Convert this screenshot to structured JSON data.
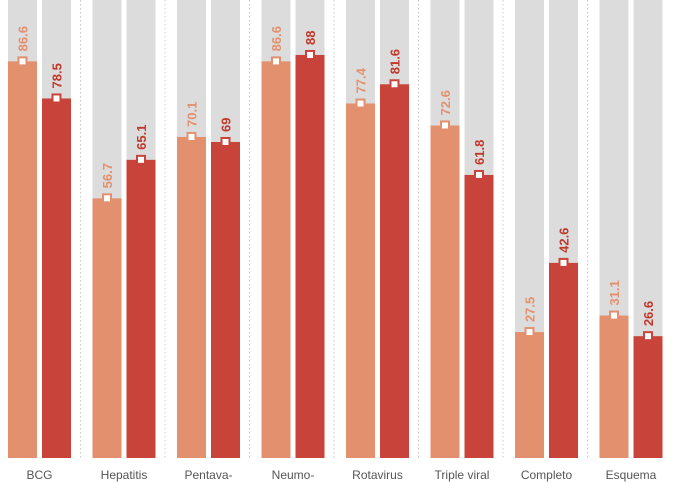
{
  "chart_data": {
    "type": "bar",
    "categories": [
      "BCG",
      "Hepatitis",
      "Pentava-",
      "Neumo-",
      "Rotavirus",
      "Triple viral",
      "Completo",
      "Esquema"
    ],
    "series": [
      {
        "values": [
          86.6,
          56.7,
          70.1,
          86.6,
          77.4,
          72.6,
          27.5,
          31.1
        ]
      },
      {
        "values": [
          78.5,
          65.1,
          69,
          88,
          81.6,
          61.8,
          42.6,
          26.6
        ]
      }
    ],
    "value_labels": [
      [
        "86.6",
        "56.7",
        "70.1",
        "86.6",
        "77.4",
        "72.6",
        "27.5",
        "31.1"
      ],
      [
        "78.5",
        "65.1",
        "69",
        "88",
        "81.6",
        "61.8",
        "42.6",
        "26.6"
      ]
    ],
    "ylim": [
      0,
      100
    ],
    "grid": false,
    "legend": "none",
    "colors": {
      "series_light": "#e3906f",
      "series_dark": "#c8433a",
      "background_bar": "#dcdcdc",
      "label_light": "#e3906f",
      "label_dark": "#c0392b",
      "separator": "#c8c8c8",
      "category_text": "#555555"
    }
  }
}
